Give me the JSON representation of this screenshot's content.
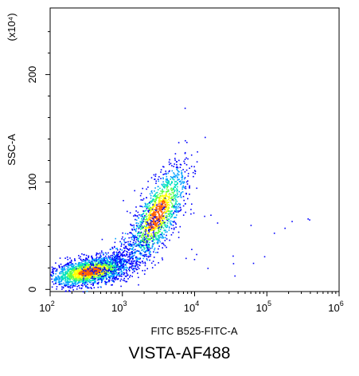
{
  "caption": "VISTA-AF488",
  "chart_data": {
    "type": "scatter",
    "subtype": "flow-cytometry density dot plot",
    "xlabel": "FITC B525-FITC-A",
    "ylabel": "SSC-A",
    "y_multiplier_label": "(x10⁴)",
    "xscale": "log",
    "xlim": [
      100,
      1000000
    ],
    "x_ticks": [
      {
        "value": 100,
        "base": "10",
        "exp": "2"
      },
      {
        "value": 1000,
        "base": "10",
        "exp": "3"
      },
      {
        "value": 10000,
        "base": "10",
        "exp": "4"
      },
      {
        "value": 100000,
        "base": "10",
        "exp": "5"
      },
      {
        "value": 1000000,
        "base": "10",
        "exp": "6"
      }
    ],
    "yscale": "linear",
    "ylim": [
      -2,
      262
    ],
    "y_ticks": [
      0,
      100,
      200
    ],
    "density_colors": [
      "#0000ff",
      "#00a0ff",
      "#00e0c0",
      "#60ff40",
      "#ffff00",
      "#ff6000"
    ],
    "populations": [
      {
        "name": "",
        "x_center": 350,
        "y_center": 17,
        "approx_events": 1800
      },
      {
        "name": "",
        "x_center": 3000,
        "y_center": 70,
        "approx_events": 1300
      }
    ]
  }
}
